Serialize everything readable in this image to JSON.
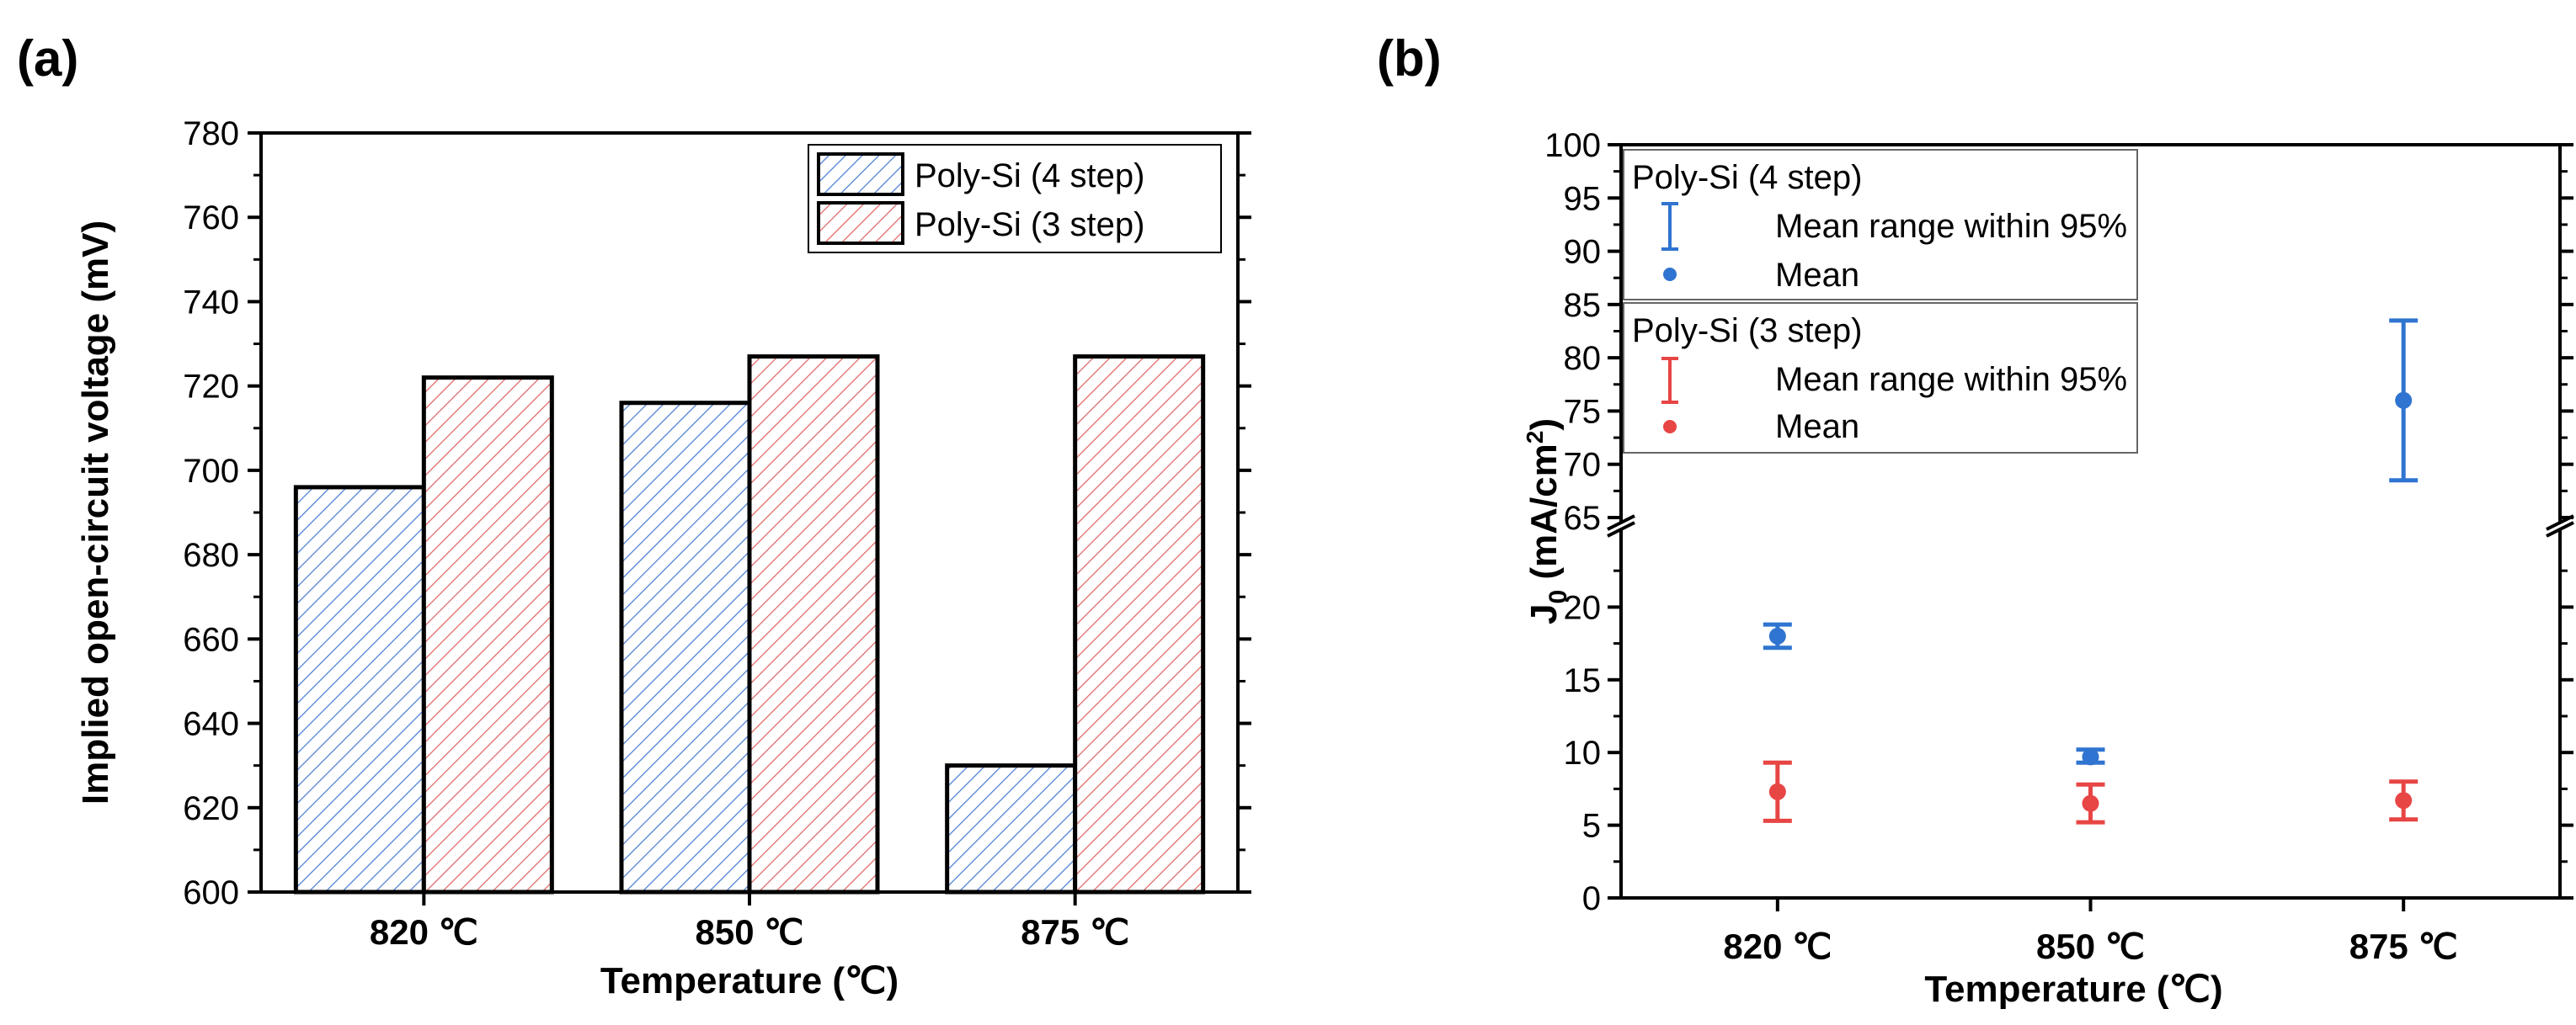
{
  "panels": {
    "a_label": "(a)",
    "b_label": "(b)"
  },
  "chart_data": [
    {
      "type": "bar",
      "title": "",
      "xlabel": "Temperature (℃)",
      "ylabel": "Implied open-circuit voltage (mV)",
      "categories": [
        "820 ℃",
        "850 ℃",
        "875 ℃"
      ],
      "ylim": [
        600,
        780
      ],
      "yticks": [
        600,
        620,
        640,
        660,
        680,
        700,
        720,
        740,
        760,
        780
      ],
      "legend_position": "top-right",
      "series": [
        {
          "name": "Poly-Si (4 step)",
          "values": [
            696,
            716,
            630
          ],
          "color": "#4a7fd4",
          "hatch": "diagonal"
        },
        {
          "name": "Poly-Si (3 step)",
          "values": [
            722,
            727,
            727
          ],
          "color": "#e06666",
          "hatch": "diagonal"
        }
      ]
    },
    {
      "type": "scatter",
      "title": "",
      "xlabel": "Temperature (℃)",
      "ylabel_main": "J",
      "ylabel_sub": "0",
      "ylabel_units_pre": " (mA/cm",
      "ylabel_units_sup": "2",
      "ylabel_units_post": ")",
      "categories": [
        "820 ℃",
        "850 ℃",
        "875 ℃"
      ],
      "ylim_lower": [
        0,
        25
      ],
      "ylim_upper": [
        65,
        100
      ],
      "axis_break": true,
      "yticks_lower": [
        0,
        5,
        10,
        15,
        20
      ],
      "yticks_upper": [
        65,
        70,
        75,
        80,
        85,
        90,
        95,
        100
      ],
      "legend_position": "top-left",
      "series": [
        {
          "name": "Poly-Si (4 step)",
          "color": "#2f74d0",
          "mean": [
            18.0,
            9.7,
            76.0
          ],
          "lower": [
            17.2,
            9.3,
            68.5
          ],
          "upper": [
            18.8,
            10.2,
            83.5
          ]
        },
        {
          "name": "Poly-Si (3 step)",
          "color": "#e84545",
          "mean": [
            7.3,
            6.5,
            6.7
          ],
          "lower": [
            5.3,
            5.2,
            5.4
          ],
          "upper": [
            9.3,
            7.8,
            8.0
          ]
        }
      ],
      "legend": {
        "group1_title": "Poly-Si (4 step)",
        "group2_title": "Poly-Si (3 step)",
        "range_label": "Mean range within 95%",
        "mean_label": "Mean"
      }
    }
  ]
}
